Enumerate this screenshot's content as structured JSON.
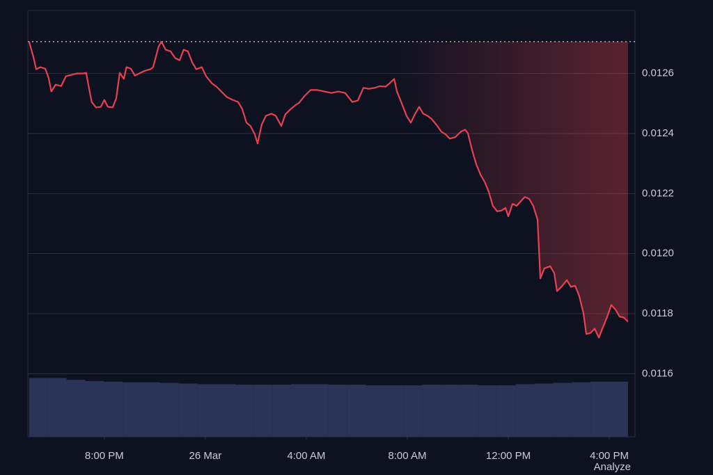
{
  "chart_data": {
    "type": "line",
    "color": "#e8414f",
    "baseline": 0.012706,
    "baseline_color": "#c9ced8",
    "x": [
      -6.98,
      -6.81,
      -6.7,
      -6.54,
      -6.34,
      -6.21,
      -6.1,
      -5.93,
      -5.71,
      -5.52,
      -5.32,
      -5.1,
      -4.88,
      -4.72,
      -4.61,
      -4.5,
      -4.33,
      -4.14,
      -4.0,
      -3.86,
      -3.67,
      -3.53,
      -3.39,
      -3.23,
      -3.12,
      -2.95,
      -2.79,
      -2.62,
      -2.4,
      -2.18,
      -2.07,
      -1.96,
      -1.85,
      -1.74,
      -1.57,
      -1.38,
      -1.19,
      -1.02,
      -0.86,
      -0.69,
      -0.52,
      -0.36,
      -0.14,
      0.03,
      0.25,
      0.47,
      0.63,
      0.86,
      1.08,
      1.3,
      1.46,
      1.63,
      1.79,
      1.96,
      2.07,
      2.23,
      2.4,
      2.62,
      2.79,
      3.01,
      3.17,
      3.39,
      3.56,
      3.72,
      3.94,
      4.17,
      4.44,
      4.72,
      4.99,
      5.27,
      5.54,
      5.82,
      6.04,
      6.26,
      6.48,
      6.7,
      6.92,
      7.14,
      7.31,
      7.48,
      7.59,
      7.81,
      7.97,
      8.14,
      8.3,
      8.47,
      8.63,
      8.8,
      8.97,
      9.19,
      9.35,
      9.52,
      9.68,
      9.9,
      10.12,
      10.29,
      10.4,
      10.57,
      10.73,
      10.9,
      11.06,
      11.23,
      11.39,
      11.56,
      11.72,
      11.89,
      12.0,
      12.17,
      12.33,
      12.5,
      12.66,
      12.83,
      12.99,
      13.16,
      13.27,
      13.43,
      13.66,
      13.82,
      13.93,
      14.1,
      14.32,
      14.48,
      14.65,
      14.81,
      14.98,
      15.09,
      15.26,
      15.42,
      15.59,
      15.75,
      15.92,
      16.08,
      16.25,
      16.41,
      16.58,
      16.74
    ],
    "values": [
      0.012706,
      0.012655,
      0.012614,
      0.012621,
      0.012616,
      0.012586,
      0.01254,
      0.012563,
      0.012558,
      0.012591,
      0.012595,
      0.0126,
      0.0126,
      0.012602,
      0.012552,
      0.012505,
      0.012487,
      0.012489,
      0.012512,
      0.012489,
      0.012487,
      0.012517,
      0.012602,
      0.012582,
      0.012621,
      0.012616,
      0.012593,
      0.0126,
      0.012609,
      0.012614,
      0.012621,
      0.012655,
      0.01269,
      0.012706,
      0.012679,
      0.012674,
      0.012651,
      0.012644,
      0.012679,
      0.012674,
      0.012637,
      0.012614,
      0.012621,
      0.012591,
      0.012568,
      0.012554,
      0.01254,
      0.012521,
      0.012512,
      0.012505,
      0.012482,
      0.012436,
      0.012425,
      0.012397,
      0.012367,
      0.012429,
      0.012459,
      0.012466,
      0.012459,
      0.012425,
      0.012464,
      0.012482,
      0.012494,
      0.012503,
      0.012526,
      0.012545,
      0.012545,
      0.01254,
      0.012535,
      0.01254,
      0.012535,
      0.012505,
      0.01251,
      0.012552,
      0.012549,
      0.012552,
      0.012558,
      0.012556,
      0.012568,
      0.012582,
      0.01254,
      0.012494,
      0.012459,
      0.012436,
      0.012464,
      0.012489,
      0.012466,
      0.012459,
      0.012448,
      0.012425,
      0.012406,
      0.012397,
      0.012383,
      0.012388,
      0.012406,
      0.012413,
      0.012401,
      0.012344,
      0.012298,
      0.012263,
      0.01224,
      0.012205,
      0.012159,
      0.012141,
      0.012143,
      0.012152,
      0.012124,
      0.012166,
      0.012159,
      0.012175,
      0.012189,
      0.012182,
      0.012159,
      0.012113,
      0.011917,
      0.011951,
      0.011958,
      0.011935,
      0.011875,
      0.011889,
      0.011912,
      0.011889,
      0.011893,
      0.011859,
      0.011801,
      0.011732,
      0.011736,
      0.01175,
      0.01172,
      0.011755,
      0.01179,
      0.011829,
      0.011813,
      0.01179,
      0.011787,
      0.011773
    ],
    "xlim": [
      -7.03,
      17.02
    ],
    "xticks": [
      {
        "value": -4,
        "label": "8:00 PM"
      },
      {
        "value": 0,
        "label": "26 Mar"
      },
      {
        "value": 4,
        "label": "4:00 AM"
      },
      {
        "value": 8,
        "label": "8:00 AM"
      },
      {
        "value": 12,
        "label": "12:00 PM"
      },
      {
        "value": 16,
        "label": "4:00 PM"
      }
    ],
    "ylim": [
      0.01139,
      0.01281
    ],
    "yticks": [
      0.0116,
      0.0118,
      {
        "value": 0.012,
        "label": "0.0120"
      },
      0.0122,
      0.0124,
      0.0126
    ],
    "grid": true,
    "volume": {
      "color": "#2a3457",
      "ylim": [
        0,
        100
      ],
      "values": [
        96,
        96,
        93,
        91,
        90,
        89,
        89,
        88,
        87,
        86,
        86,
        85,
        85,
        85,
        86,
        86,
        85,
        85,
        84,
        84,
        84,
        85,
        85,
        85,
        84,
        84,
        86,
        87,
        88,
        89,
        90,
        90
      ]
    },
    "footnote": "Analyze"
  }
}
